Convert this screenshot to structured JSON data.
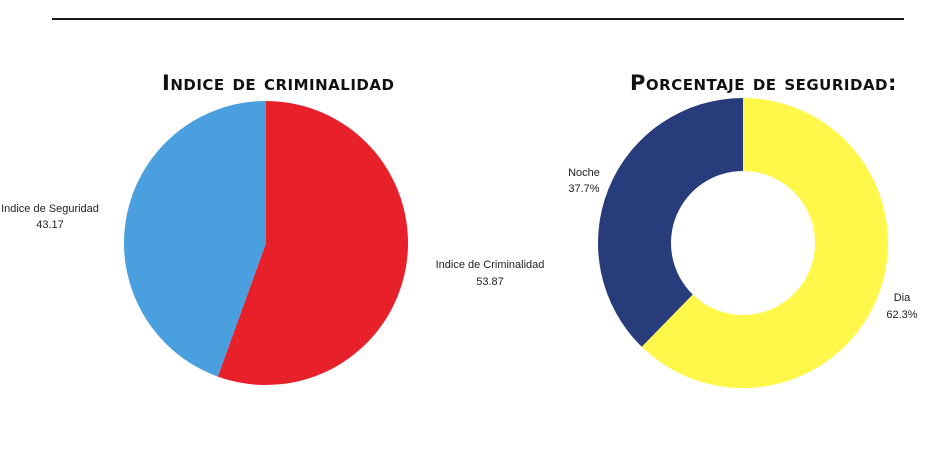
{
  "chart_data": [
    {
      "type": "pie",
      "title": "Indice de criminalidad",
      "slices": [
        {
          "label": "Indice de Criminalidad",
          "value": 53.87,
          "display": "53.87",
          "color": "#e8202a"
        },
        {
          "label": "Indice de Seguridad",
          "value": 43.17,
          "display": "43.17",
          "color": "#4a9fdf"
        }
      ]
    },
    {
      "type": "pie",
      "variant": "donut",
      "title": "Porcentaje de seguridad:",
      "slices": [
        {
          "label": "Dia",
          "value": 62.3,
          "display": "62.3%",
          "color": "#fff84a"
        },
        {
          "label": "Noche",
          "value": 37.7,
          "display": "37.7%",
          "color": "#283c7c"
        }
      ]
    }
  ]
}
